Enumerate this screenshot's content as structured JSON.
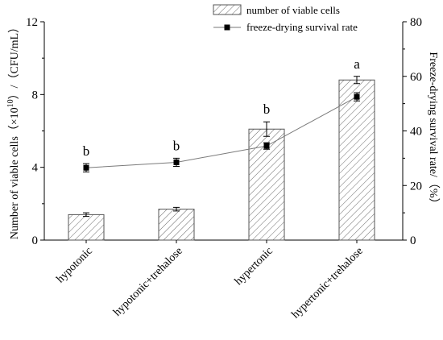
{
  "chart_data": {
    "type": "bar",
    "categories": [
      "hypotonic",
      "hypotonic+trehalose",
      "hypertonic",
      "hypertonic+trehalose"
    ],
    "series": [
      {
        "name": "number of viable cells",
        "type": "bar",
        "axis": "left",
        "values": [
          1.4,
          1.7,
          6.1,
          8.8
        ],
        "errors": [
          0.1,
          0.1,
          0.4,
          0.2
        ]
      },
      {
        "name": "freeze-drying survival rate",
        "type": "line",
        "axis": "right",
        "values": [
          26.5,
          28.5,
          34.5,
          52.5
        ],
        "errors": [
          1.5,
          1.5,
          1.2,
          1.5
        ],
        "labels": [
          "b",
          "b",
          "b",
          "a"
        ]
      }
    ],
    "ylabel_left_prefix": "Number of viable cells（×10",
    "ylabel_left_exp": "10",
    "ylabel_left_suffix": "）/（CFU/mL）",
    "ylabel_right": "Freeze-drying survival rate/（%）",
    "ylim_left": [
      0,
      12
    ],
    "ylim_right": [
      0,
      80
    ],
    "yticks_left": [
      "0",
      "4",
      "8",
      "12"
    ],
    "yticks_right": [
      "0",
      "20",
      "40",
      "60",
      "80"
    ],
    "legend_position": "top-right",
    "grid": false
  }
}
